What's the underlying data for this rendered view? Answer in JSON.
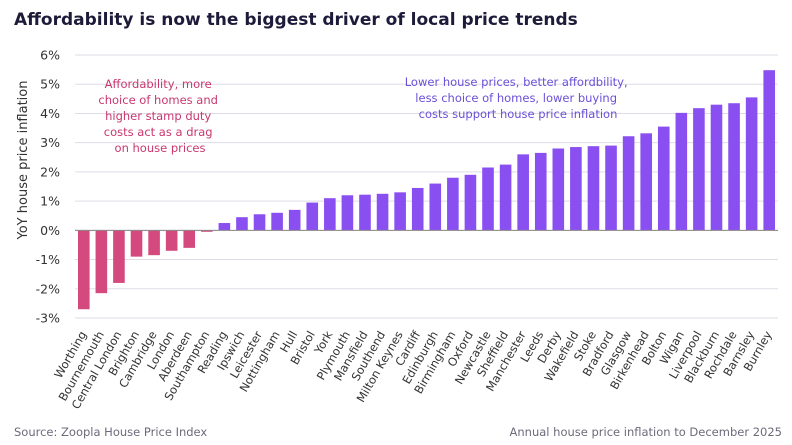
{
  "chart_data": {
    "type": "bar",
    "title": "Affordability is now the biggest driver of local price trends",
    "ylabel": "YoY house price inflation",
    "xlabel": "",
    "ylim": [
      -3,
      6
    ],
    "yticks": [
      "-3%",
      "-2%",
      "-1%",
      "0%",
      "1%",
      "2%",
      "3%",
      "4%",
      "5%",
      "6%"
    ],
    "categories": [
      "Worthing",
      "Bournemouth",
      "Central London",
      "Brighton",
      "Cambridge",
      "London",
      "Aberdeen",
      "Southampton",
      "Reading",
      "Ipswich",
      "Leicester",
      "Nottingham",
      "Hull",
      "Bristol",
      "York",
      "Plymouth",
      "Mansfield",
      "Southend",
      "Milton Keynes",
      "Cardiff",
      "Edinburgh",
      "Birmingham",
      "Oxford",
      "Newcastle",
      "Sheffield",
      "Manchester",
      "Leeds",
      "Derby",
      "Wakefield",
      "Stoke",
      "Bradford",
      "Glasgow",
      "Birkenhead",
      "Bolton",
      "Wigan",
      "Liverpool",
      "Blackburn",
      "Rochdale",
      "Barnsley",
      "Burnley"
    ],
    "values": [
      -2.7,
      -2.15,
      -1.8,
      -0.9,
      -0.85,
      -0.7,
      -0.6,
      -0.05,
      0.25,
      0.45,
      0.55,
      0.6,
      0.7,
      0.95,
      1.1,
      1.2,
      1.22,
      1.25,
      1.3,
      1.45,
      1.6,
      1.8,
      1.9,
      2.15,
      2.25,
      2.6,
      2.65,
      2.8,
      2.85,
      2.88,
      2.9,
      3.22,
      3.32,
      3.55,
      4.02,
      4.18,
      4.3,
      4.35,
      4.55,
      5.48
    ],
    "colors": {
      "negative": "#d44a7e",
      "positive": "#8a4ff0",
      "grid": "#dedde6",
      "axis": "#888888"
    },
    "annotations": {
      "left": [
        "Affordability, more",
        "choice of homes and",
        "higher stamp duty",
        "costs act as a drag",
        "on house prices"
      ],
      "right": [
        "Lower house prices, better affordbility,",
        "less choice of homes, lower buying",
        "costs support house price inflation"
      ]
    },
    "source": "Source: Zoopla House Price Index",
    "note": "Annual house price inflation to December 2025"
  }
}
